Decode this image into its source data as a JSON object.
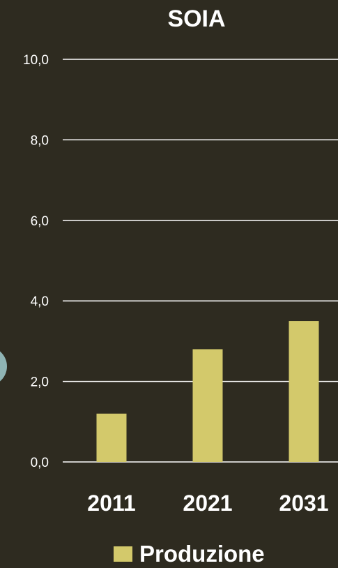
{
  "chart_data": {
    "type": "bar",
    "title": "SOIA",
    "categories": [
      "2011",
      "2021",
      "2031"
    ],
    "series": [
      {
        "name": "Produzione",
        "values": [
          1.2,
          2.8,
          3.5
        ]
      }
    ],
    "ylim": [
      0,
      10
    ],
    "yticks": [
      "0,0",
      "2,0",
      "4,0",
      "6,0",
      "8,0",
      "10,0"
    ],
    "grid": true,
    "legend": "bottom"
  },
  "colors": {
    "background": "#2e2b20",
    "bar": "#d3c96b",
    "gridline": "#ffffff",
    "text": "#ffffff",
    "circle_accent": "#8fb4b4"
  }
}
